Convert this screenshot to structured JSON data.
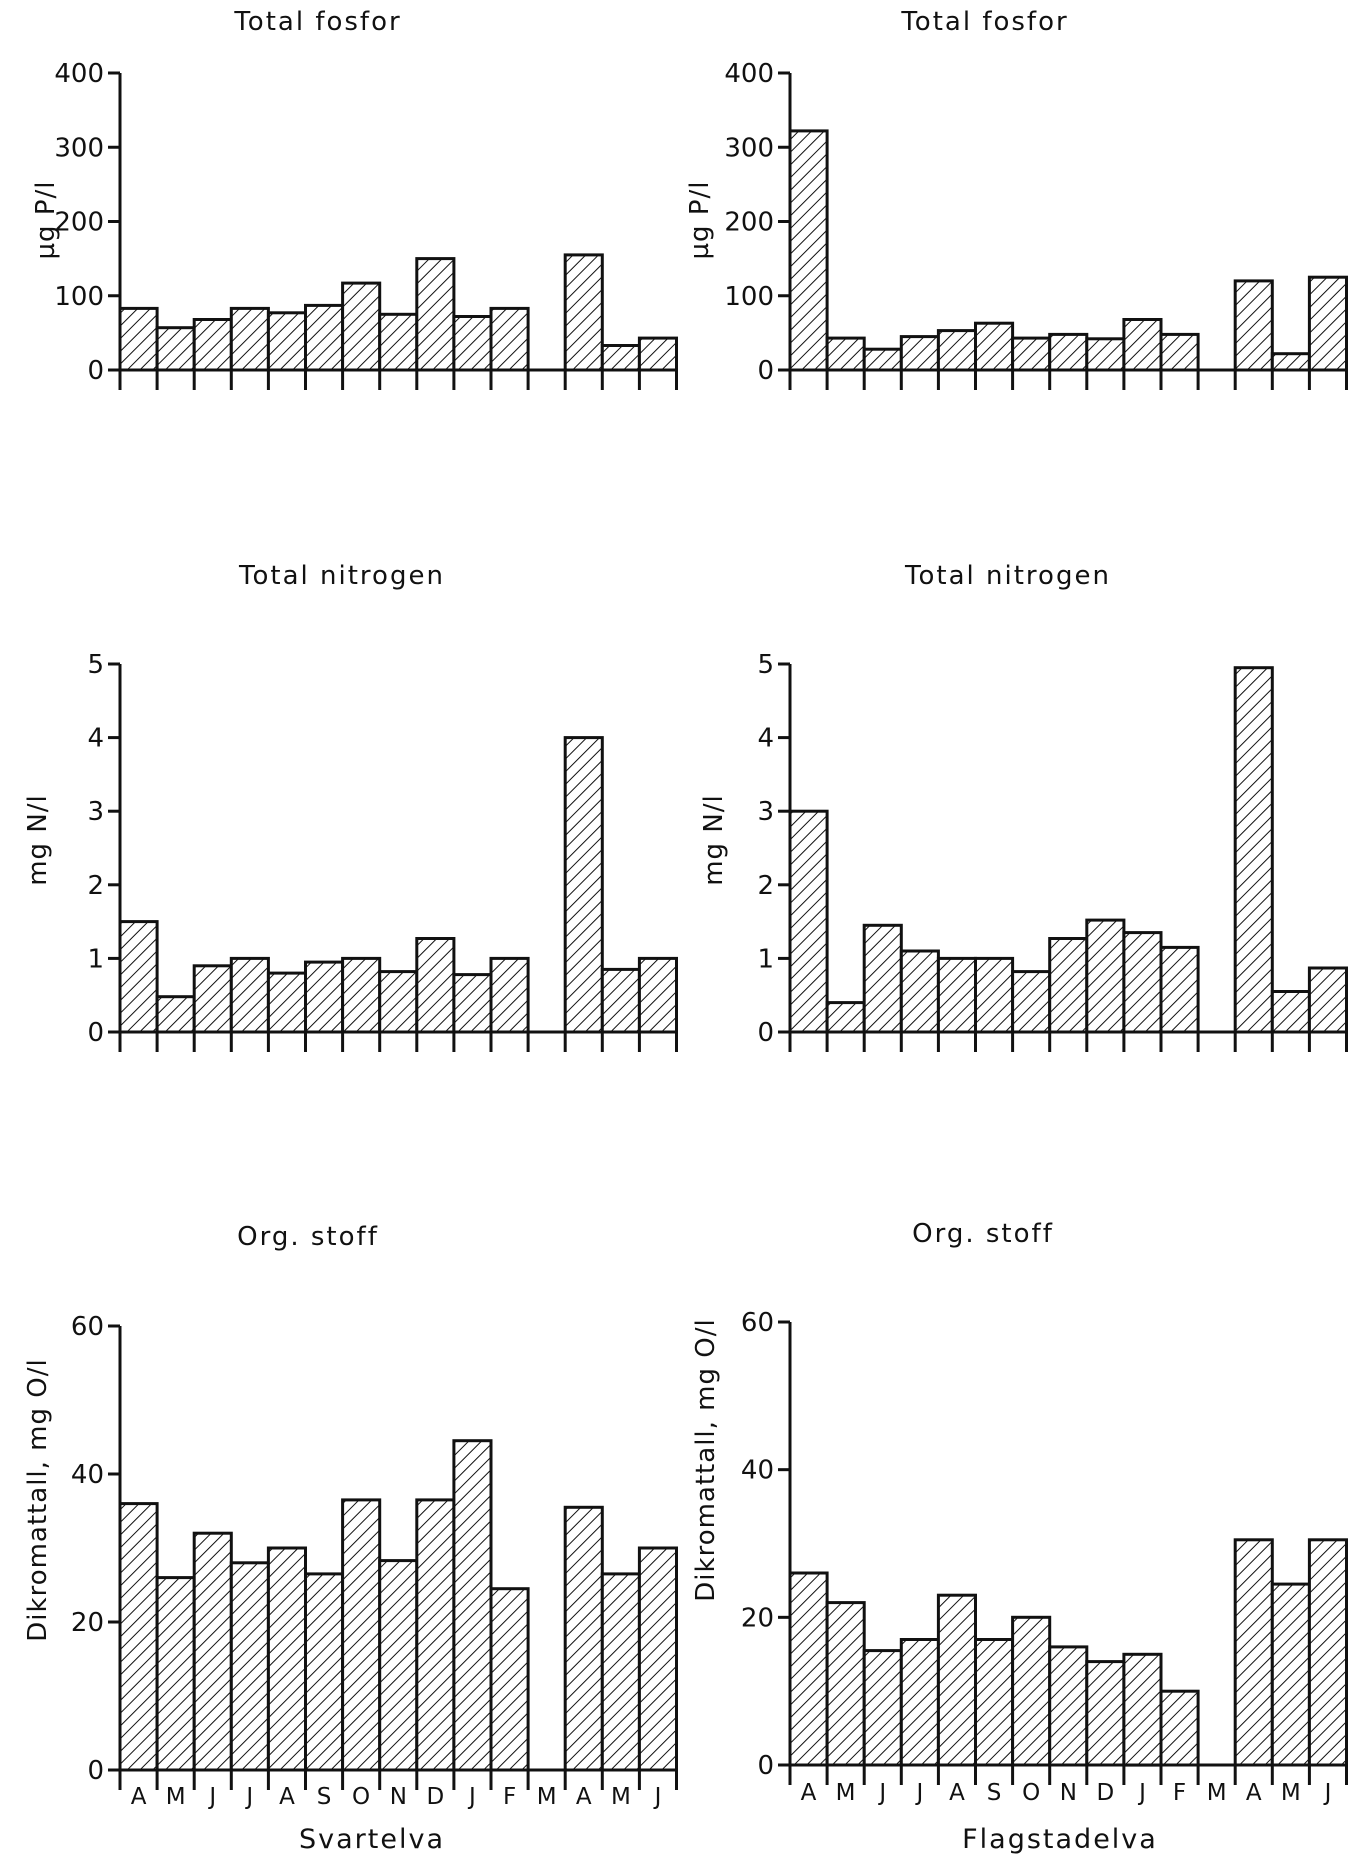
{
  "months": [
    "A",
    "M",
    "J",
    "J",
    "A",
    "S",
    "O",
    "N",
    "D",
    "J",
    "F",
    "M",
    "A",
    "M",
    "J"
  ],
  "colors": {
    "ink": "#111111",
    "background": "#ffffff"
  },
  "chart_data": [
    {
      "type": "bar",
      "title": "Total fosfor",
      "ylabel": "µg P/l",
      "ylim": [
        0,
        400
      ],
      "yticks": [
        0,
        100,
        200,
        300,
        400
      ],
      "categories": [
        "A",
        "M",
        "J",
        "J",
        "A",
        "S",
        "O",
        "N",
        "D",
        "J",
        "F",
        "M",
        "A",
        "M",
        "J"
      ],
      "values": [
        83,
        57,
        68,
        83,
        77,
        87,
        117,
        75,
        150,
        72,
        83,
        null,
        155,
        33,
        43
      ],
      "grid": false,
      "legend": "none"
    },
    {
      "type": "bar",
      "title": "Total fosfor",
      "ylabel": "µg P/l",
      "ylim": [
        0,
        400
      ],
      "yticks": [
        0,
        100,
        200,
        300,
        400
      ],
      "categories": [
        "A",
        "M",
        "J",
        "J",
        "A",
        "S",
        "O",
        "N",
        "D",
        "J",
        "F",
        "M",
        "A",
        "M",
        "J"
      ],
      "values": [
        322,
        43,
        28,
        45,
        53,
        63,
        43,
        48,
        42,
        68,
        48,
        null,
        120,
        22,
        125
      ],
      "grid": false,
      "legend": "none"
    },
    {
      "type": "bar",
      "title": "Total nitrogen",
      "ylabel": "mg N/l",
      "ylim": [
        0,
        5
      ],
      "yticks": [
        0,
        1,
        2,
        3,
        4,
        5
      ],
      "categories": [
        "A",
        "M",
        "J",
        "J",
        "A",
        "S",
        "O",
        "N",
        "D",
        "J",
        "F",
        "M",
        "A",
        "M",
        "J"
      ],
      "values": [
        1.5,
        0.48,
        0.9,
        1.0,
        0.8,
        0.95,
        1.0,
        0.82,
        1.27,
        0.78,
        1.0,
        null,
        4.0,
        0.85,
        1.0
      ],
      "grid": false,
      "legend": "none"
    },
    {
      "type": "bar",
      "title": "Total nitrogen",
      "ylabel": "mg N/l",
      "ylim": [
        0,
        5
      ],
      "yticks": [
        0,
        1,
        2,
        3,
        4,
        5
      ],
      "categories": [
        "A",
        "M",
        "J",
        "J",
        "A",
        "S",
        "O",
        "N",
        "D",
        "J",
        "F",
        "M",
        "A",
        "M",
        "J"
      ],
      "values": [
        3.0,
        0.4,
        1.45,
        1.1,
        1.0,
        1.0,
        0.82,
        1.27,
        1.52,
        1.35,
        1.15,
        null,
        4.95,
        0.55,
        0.87
      ],
      "grid": false,
      "legend": "none"
    },
    {
      "type": "bar",
      "title": "Org. stoff",
      "ylabel": "Dikromattall, mg O/l",
      "xlabel": "Svartelva",
      "ylim": [
        0,
        60
      ],
      "yticks": [
        0,
        20,
        40,
        60
      ],
      "categories": [
        "A",
        "M",
        "J",
        "J",
        "A",
        "S",
        "O",
        "N",
        "D",
        "J",
        "F",
        "M",
        "A",
        "M",
        "J"
      ],
      "values": [
        36,
        26,
        32,
        28,
        30,
        26.5,
        36.5,
        28.3,
        36.5,
        44.5,
        24.5,
        null,
        35.5,
        26.5,
        30
      ],
      "grid": false,
      "legend": "none"
    },
    {
      "type": "bar",
      "title": "Org. stoff",
      "ylabel": "Dikromattall, mg O/l",
      "xlabel": "Flagstadelva",
      "ylim": [
        0,
        60
      ],
      "yticks": [
        0,
        20,
        40,
        60
      ],
      "categories": [
        "A",
        "M",
        "J",
        "J",
        "A",
        "S",
        "O",
        "N",
        "D",
        "J",
        "F",
        "M",
        "A",
        "M",
        "J"
      ],
      "values": [
        26,
        22,
        15.5,
        17,
        23,
        17,
        20,
        16,
        14,
        15,
        10,
        null,
        30.5,
        24.5,
        30.5
      ],
      "grid": false,
      "legend": "none"
    }
  ]
}
